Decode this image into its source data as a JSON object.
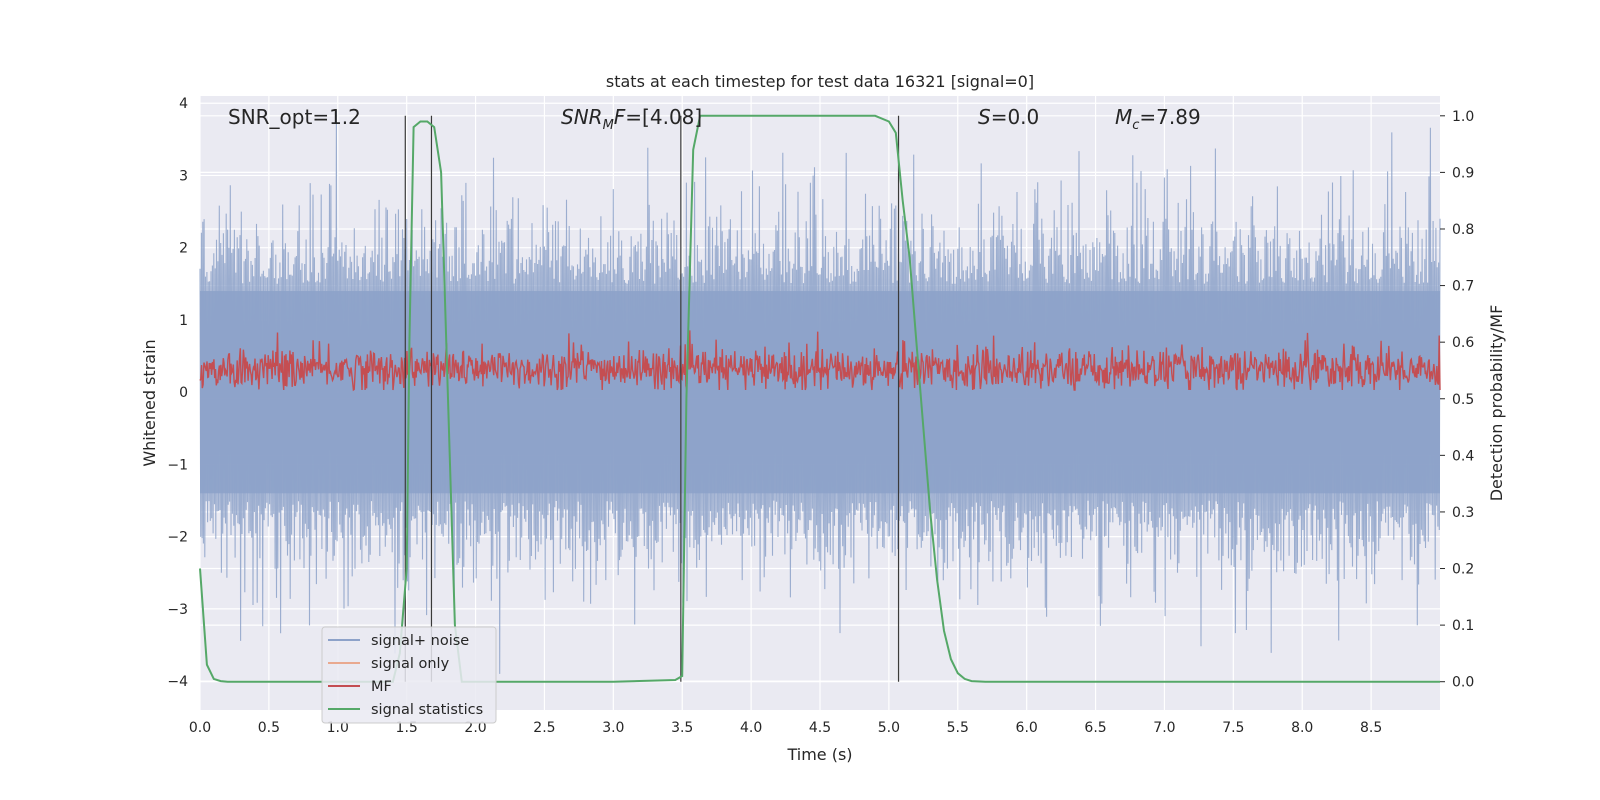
{
  "chart_data": {
    "type": "line",
    "title": "stats at each timestep for test data 16321 [signal=0]",
    "xlabel": "Time (s)",
    "ylabel": "Whitened strain",
    "y2label": "Detection probability/MF",
    "xlim": [
      0.0,
      9.0
    ],
    "ylim": [
      -4.4,
      4.1
    ],
    "y2lim": [
      -0.05,
      1.035
    ],
    "grid": true,
    "legend_position": "lower-left",
    "x_ticks": [
      "0.0",
      "0.5",
      "1.0",
      "1.5",
      "2.0",
      "2.5",
      "3.0",
      "3.5",
      "4.0",
      "4.5",
      "5.0",
      "5.5",
      "6.0",
      "6.5",
      "7.0",
      "7.5",
      "8.0",
      "8.5"
    ],
    "y_ticks": [
      "4",
      "3",
      "2",
      "1",
      "0",
      "−1",
      "−2",
      "−3",
      "−4"
    ],
    "y2_ticks": [
      "1.0",
      "0.9",
      "0.8",
      "0.7",
      "0.6",
      "0.5",
      "0.4",
      "0.3",
      "0.2",
      "0.1",
      "0.0"
    ],
    "annotations": {
      "snr_opt": "SNR_opt=1.2",
      "snr_mf_italic": "SNR",
      "snr_mf_sub": "M",
      "snr_mf_tail_italic": "F",
      "snr_mf_value": "=[4.08]",
      "s_italic": "S",
      "s_value": "=0.0",
      "mc_italic": "M",
      "mc_sub": "c",
      "mc_value": "=7.89"
    },
    "vertical_markers": [
      1.49,
      1.68,
      3.49,
      5.07
    ],
    "series": [
      {
        "name": "signal+ noise",
        "color": "#8da2c9",
        "axis": "left",
        "style": "dense noise ±2 (peaks ±3.8)"
      },
      {
        "name": "signal only",
        "color": "#e9a98f",
        "axis": "left",
        "style": "flat, not visible"
      },
      {
        "name": "MF",
        "color": "#c44e52",
        "axis": "left",
        "style": "band 0.05–0.7"
      },
      {
        "name": "signal statistics",
        "color": "#55a868",
        "axis": "right",
        "x": [
          0.0,
          0.05,
          0.1,
          0.15,
          0.2,
          0.3,
          0.5,
          1.0,
          1.4,
          1.45,
          1.5,
          1.52,
          1.55,
          1.6,
          1.65,
          1.7,
          1.75,
          1.8,
          1.85,
          1.9,
          2.0,
          3.0,
          3.45,
          3.5,
          3.53,
          3.58,
          3.63,
          4.0,
          4.5,
          4.9,
          5.0,
          5.05,
          5.1,
          5.15,
          5.2,
          5.25,
          5.3,
          5.35,
          5.4,
          5.45,
          5.5,
          5.55,
          5.6,
          5.7,
          6.0,
          7.0,
          8.0,
          9.0
        ],
        "values": [
          0.2,
          0.03,
          0.005,
          0.001,
          0.0,
          0.0,
          0.0,
          0.0,
          0.0,
          0.05,
          0.2,
          0.6,
          0.98,
          0.99,
          0.99,
          0.98,
          0.9,
          0.5,
          0.1,
          0.0,
          0.0,
          0.0,
          0.003,
          0.01,
          0.5,
          0.94,
          1.0,
          1.0,
          1.0,
          1.0,
          0.99,
          0.97,
          0.85,
          0.75,
          0.6,
          0.45,
          0.3,
          0.18,
          0.09,
          0.04,
          0.015,
          0.005,
          0.001,
          0.0,
          0.0,
          0.0,
          0.0,
          0.0
        ]
      }
    ]
  }
}
